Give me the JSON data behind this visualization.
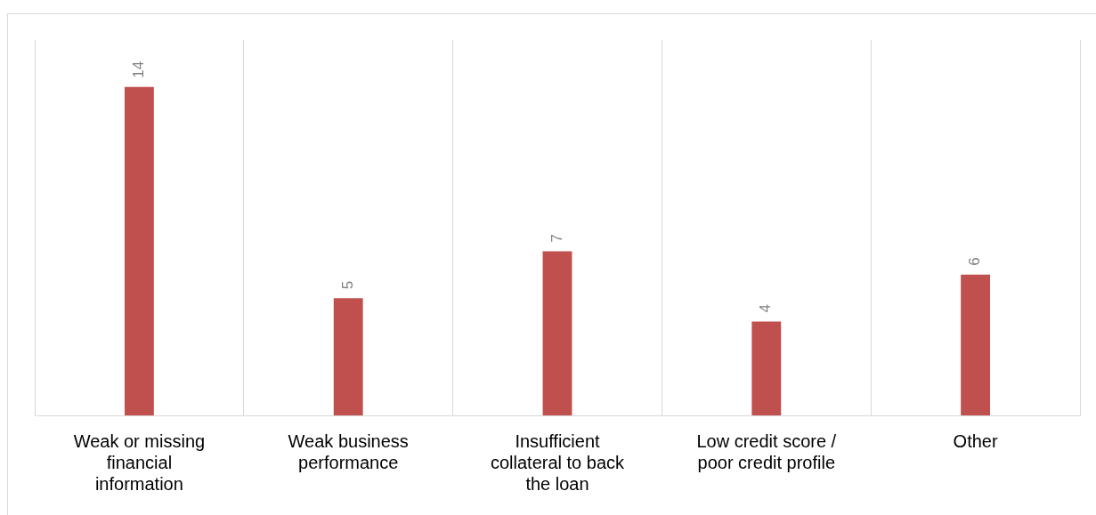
{
  "chart_data": {
    "type": "bar",
    "categories": [
      "Weak or missing financial information",
      "Weak business performance",
      "Insufficient collateral to back the loan",
      "Low credit score / poor credit profile",
      "Other"
    ],
    "values": [
      14,
      5,
      7,
      4,
      6
    ],
    "color": "#c0504d",
    "ylim": [
      0,
      16
    ],
    "grid": "x",
    "data_labels": true,
    "tick_labels": "x",
    "legend": false
  }
}
